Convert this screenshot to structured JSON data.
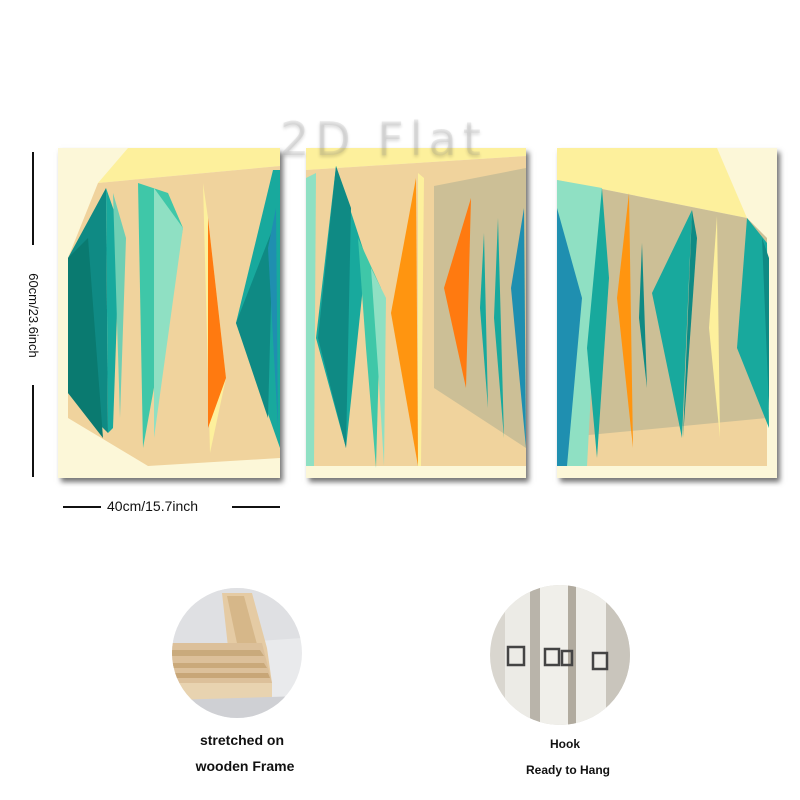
{
  "watermark": "2D Flat",
  "dimensions": {
    "height_label": "60cm/23.6inch",
    "width_label": "40cm/15.7inch"
  },
  "features": [
    {
      "caption_line1": "stretched on",
      "caption_line2": "wooden Frame"
    },
    {
      "caption_line1": "Hook",
      "caption_line2": "Ready to Hang"
    }
  ],
  "colors": {
    "cream": "#fcf7d8",
    "sand": "#f0d39d",
    "yellow": "#fdf09c",
    "teal_dark": "#0f8a84",
    "teal": "#18a99d",
    "mint": "#8fe0c3",
    "orange": "#ff7a10",
    "khaki": "#ccbf96",
    "blue": "#1f8fb0"
  }
}
